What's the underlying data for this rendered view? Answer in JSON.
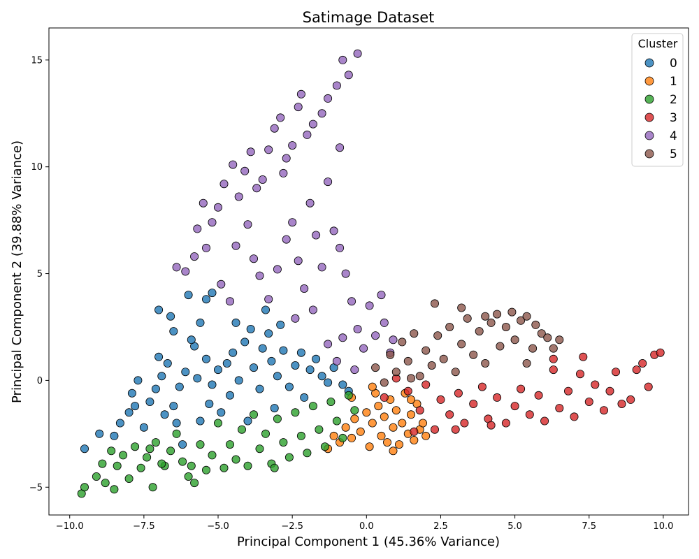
{
  "chart_data": {
    "type": "scatter",
    "title": "Satimage Dataset",
    "xlabel": "Principal Component 1 (45.36% Variance)",
    "ylabel": "Principal Component 2 (39.88% Variance)",
    "xlim": [
      -10.7,
      10.85
    ],
    "ylim": [
      -6.3,
      16.5
    ],
    "xticks": [
      -10.0,
      -7.5,
      -5.0,
      -2.5,
      0.0,
      2.5,
      5.0,
      7.5,
      10.0
    ],
    "xtick_labels": [
      "−10.0",
      "−7.5",
      "−5.0",
      "−2.5",
      "0.0",
      "2.5",
      "5.0",
      "7.5",
      "10.0"
    ],
    "yticks": [
      -5,
      0,
      5,
      10,
      15
    ],
    "ytick_labels": [
      "−5",
      "0",
      "5",
      "10",
      "15"
    ],
    "grid": false,
    "legend": {
      "title": "Cluster",
      "placement": "top-right"
    },
    "series": [
      {
        "name": "0",
        "color": "#1f77b4",
        "points": [
          [
            -9.5,
            -3.2
          ],
          [
            -9.0,
            -2.5
          ],
          [
            -8.5,
            -2.6
          ],
          [
            -8.3,
            -2.0
          ],
          [
            -8.0,
            -1.5
          ],
          [
            -7.8,
            -1.2
          ],
          [
            -7.9,
            -0.6
          ],
          [
            -7.5,
            -2.2
          ],
          [
            -7.3,
            -1.0
          ],
          [
            -7.1,
            -0.4
          ],
          [
            -6.9,
            0.2
          ],
          [
            -7.0,
            1.1
          ],
          [
            -7.0,
            3.3
          ],
          [
            -6.6,
            3.0
          ],
          [
            -6.5,
            2.3
          ],
          [
            -6.8,
            -1.6
          ],
          [
            -6.5,
            -1.2
          ],
          [
            -6.3,
            -0.3
          ],
          [
            -6.4,
            -2.0
          ],
          [
            -6.1,
            0.4
          ],
          [
            -5.8,
            1.6
          ],
          [
            -5.9,
            1.9
          ],
          [
            -6.0,
            4.0
          ],
          [
            -5.6,
            2.7
          ],
          [
            -5.4,
            3.8
          ],
          [
            -5.2,
            4.1
          ],
          [
            -5.4,
            1.0
          ],
          [
            -5.2,
            -0.2
          ],
          [
            -5.0,
            0.5
          ],
          [
            -5.3,
            -1.1
          ],
          [
            -4.9,
            -1.5
          ],
          [
            -4.7,
            0.8
          ],
          [
            -4.5,
            1.3
          ],
          [
            -4.6,
            -0.7
          ],
          [
            -4.3,
            0.0
          ],
          [
            -4.1,
            1.8
          ],
          [
            -3.9,
            2.4
          ],
          [
            -3.8,
            0.6
          ],
          [
            -3.6,
            -0.4
          ],
          [
            -3.5,
            1.5
          ],
          [
            -3.4,
            3.3
          ],
          [
            -3.3,
            2.2
          ],
          [
            -3.2,
            0.9
          ],
          [
            -3.0,
            0.2
          ],
          [
            -2.8,
            1.4
          ],
          [
            -2.6,
            -0.3
          ],
          [
            -2.4,
            0.7
          ],
          [
            -2.2,
            1.3
          ],
          [
            -2.1,
            -0.8
          ],
          [
            -1.9,
            0.5
          ],
          [
            -1.7,
            1.0
          ],
          [
            -1.5,
            0.2
          ],
          [
            -1.3,
            -0.1
          ],
          [
            -1.1,
            0.6
          ],
          [
            -0.8,
            -0.2
          ],
          [
            -0.6,
            -0.5
          ],
          [
            -6.2,
            -3.0
          ],
          [
            -4.0,
            -1.9
          ],
          [
            -3.1,
            -1.3
          ],
          [
            -5.6,
            -1.9
          ],
          [
            -4.4,
            2.7
          ],
          [
            -2.9,
            2.6
          ],
          [
            -7.7,
            0.0
          ],
          [
            -6.7,
            0.8
          ],
          [
            -5.7,
            0.1
          ]
        ]
      },
      {
        "name": "1",
        "color": "#ff7f0e",
        "points": [
          [
            -1.3,
            -3.2
          ],
          [
            -1.1,
            -2.6
          ],
          [
            -0.9,
            -2.9
          ],
          [
            -0.7,
            -2.2
          ],
          [
            -0.5,
            -2.7
          ],
          [
            -0.4,
            -1.8
          ],
          [
            -0.2,
            -2.4
          ],
          [
            0.0,
            -1.5
          ],
          [
            0.1,
            -3.1
          ],
          [
            0.2,
            -2.0
          ],
          [
            0.3,
            -0.6
          ],
          [
            0.4,
            -1.2
          ],
          [
            0.5,
            -2.6
          ],
          [
            0.6,
            -1.7
          ],
          [
            0.7,
            -2.9
          ],
          [
            0.8,
            -0.9
          ],
          [
            0.9,
            -2.2
          ],
          [
            1.0,
            -1.4
          ],
          [
            1.1,
            -3.0
          ],
          [
            1.2,
            -2.0
          ],
          [
            1.3,
            -0.6
          ],
          [
            1.4,
            -2.5
          ],
          [
            1.5,
            -1.6
          ],
          [
            1.6,
            -2.8
          ],
          [
            1.7,
            -1.1
          ],
          [
            1.8,
            -2.3
          ],
          [
            1.9,
            -2.0
          ],
          [
            2.0,
            -2.6
          ],
          [
            0.2,
            -0.3
          ],
          [
            -0.5,
            -0.8
          ],
          [
            0.9,
            -3.3
          ],
          [
            1.5,
            -0.9
          ]
        ]
      },
      {
        "name": "2",
        "color": "#2ca02c",
        "points": [
          [
            -9.6,
            -5.3
          ],
          [
            -9.5,
            -5.0
          ],
          [
            -9.1,
            -4.5
          ],
          [
            -8.9,
            -3.9
          ],
          [
            -8.8,
            -4.8
          ],
          [
            -8.6,
            -3.3
          ],
          [
            -8.5,
            -5.1
          ],
          [
            -8.4,
            -4.0
          ],
          [
            -8.2,
            -3.5
          ],
          [
            -8.0,
            -4.6
          ],
          [
            -7.8,
            -3.1
          ],
          [
            -7.6,
            -4.1
          ],
          [
            -7.4,
            -3.6
          ],
          [
            -7.2,
            -5.0
          ],
          [
            -7.1,
            -2.9
          ],
          [
            -6.8,
            -4.0
          ],
          [
            -6.6,
            -3.3
          ],
          [
            -6.4,
            -2.5
          ],
          [
            -6.2,
            -3.8
          ],
          [
            -6.0,
            -4.5
          ],
          [
            -5.8,
            -4.8
          ],
          [
            -5.6,
            -3.0
          ],
          [
            -5.4,
            -4.2
          ],
          [
            -5.2,
            -3.5
          ],
          [
            -5.0,
            -2.0
          ],
          [
            -4.8,
            -4.1
          ],
          [
            -4.6,
            -3.0
          ],
          [
            -4.4,
            -3.7
          ],
          [
            -4.2,
            -2.3
          ],
          [
            -4.0,
            -4.0
          ],
          [
            -3.8,
            -1.6
          ],
          [
            -3.6,
            -3.2
          ],
          [
            -3.4,
            -2.5
          ],
          [
            -3.2,
            -3.9
          ],
          [
            -3.0,
            -1.8
          ],
          [
            -2.8,
            -2.9
          ],
          [
            -2.6,
            -3.6
          ],
          [
            -2.4,
            -1.5
          ],
          [
            -2.2,
            -2.6
          ],
          [
            -2.0,
            -3.4
          ],
          [
            -1.8,
            -1.2
          ],
          [
            -1.6,
            -2.3
          ],
          [
            -1.4,
            -3.1
          ],
          [
            -1.2,
            -1.0
          ],
          [
            -1.0,
            -1.9
          ],
          [
            -0.8,
            -2.7
          ],
          [
            -0.6,
            -0.7
          ],
          [
            -0.4,
            -1.4
          ],
          [
            -3.1,
            -4.1
          ],
          [
            -5.9,
            -4.0
          ],
          [
            -7.3,
            -3.2
          ],
          [
            -6.9,
            -3.9
          ]
        ]
      },
      {
        "name": "3",
        "color": "#d62728",
        "points": [
          [
            0.6,
            -0.8
          ],
          [
            1.0,
            0.1
          ],
          [
            1.4,
            -0.5
          ],
          [
            1.8,
            -1.4
          ],
          [
            2.0,
            -0.2
          ],
          [
            2.3,
            -2.3
          ],
          [
            2.5,
            -0.9
          ],
          [
            2.8,
            -1.6
          ],
          [
            3.1,
            -0.6
          ],
          [
            3.3,
            -2.0
          ],
          [
            3.6,
            -1.1
          ],
          [
            3.9,
            -0.3
          ],
          [
            4.1,
            -1.8
          ],
          [
            4.4,
            -0.8
          ],
          [
            4.7,
            -2.0
          ],
          [
            5.0,
            -1.2
          ],
          [
            5.2,
            -0.4
          ],
          [
            5.5,
            -1.6
          ],
          [
            5.8,
            -0.7
          ],
          [
            6.0,
            -1.9
          ],
          [
            6.3,
            0.5
          ],
          [
            6.5,
            -1.3
          ],
          [
            6.8,
            -0.5
          ],
          [
            7.0,
            -1.7
          ],
          [
            7.2,
            0.3
          ],
          [
            7.5,
            -1.0
          ],
          [
            7.7,
            -0.2
          ],
          [
            8.0,
            -1.4
          ],
          [
            8.2,
            -0.5
          ],
          [
            8.4,
            0.4
          ],
          [
            8.6,
            -1.1
          ],
          [
            8.9,
            -0.9
          ],
          [
            9.1,
            0.5
          ],
          [
            9.3,
            0.8
          ],
          [
            9.5,
            -0.3
          ],
          [
            9.7,
            1.2
          ],
          [
            9.9,
            1.3
          ],
          [
            7.3,
            1.1
          ],
          [
            6.3,
            1.0
          ],
          [
            3.0,
            -2.3
          ],
          [
            4.2,
            -2.1
          ],
          [
            1.6,
            -2.4
          ]
        ]
      },
      {
        "name": "4",
        "color": "#9467bd",
        "points": [
          [
            -0.8,
            15.0
          ],
          [
            -0.3,
            15.3
          ],
          [
            -0.6,
            14.3
          ],
          [
            -1.0,
            13.8
          ],
          [
            -1.3,
            13.2
          ],
          [
            -1.5,
            12.5
          ],
          [
            -1.8,
            12.0
          ],
          [
            -2.0,
            11.5
          ],
          [
            -2.2,
            13.4
          ],
          [
            -2.3,
            12.8
          ],
          [
            -2.5,
            11.0
          ],
          [
            -2.7,
            10.4
          ],
          [
            -2.8,
            9.7
          ],
          [
            -2.9,
            12.3
          ],
          [
            -3.1,
            11.8
          ],
          [
            -3.3,
            10.8
          ],
          [
            -3.5,
            9.4
          ],
          [
            -3.7,
            9.0
          ],
          [
            -3.9,
            10.7
          ],
          [
            -4.1,
            9.8
          ],
          [
            -4.3,
            8.6
          ],
          [
            -4.5,
            10.1
          ],
          [
            -4.8,
            9.2
          ],
          [
            -5.0,
            8.1
          ],
          [
            -5.2,
            7.4
          ],
          [
            -5.5,
            8.3
          ],
          [
            -5.7,
            7.1
          ],
          [
            -5.4,
            6.2
          ],
          [
            -5.8,
            5.8
          ],
          [
            -6.1,
            5.1
          ],
          [
            -6.4,
            5.3
          ],
          [
            -4.9,
            4.5
          ],
          [
            -4.6,
            3.7
          ],
          [
            -4.4,
            6.3
          ],
          [
            -4.0,
            7.3
          ],
          [
            -3.8,
            5.7
          ],
          [
            -3.6,
            4.9
          ],
          [
            -3.3,
            3.8
          ],
          [
            -3.0,
            5.2
          ],
          [
            -2.7,
            6.6
          ],
          [
            -2.5,
            7.4
          ],
          [
            -2.3,
            5.6
          ],
          [
            -2.1,
            4.3
          ],
          [
            -1.9,
            8.3
          ],
          [
            -1.7,
            6.8
          ],
          [
            -1.5,
            5.3
          ],
          [
            -1.3,
            9.3
          ],
          [
            -1.1,
            7.0
          ],
          [
            -0.9,
            6.2
          ],
          [
            -0.7,
            5.0
          ],
          [
            -0.5,
            3.7
          ],
          [
            -0.3,
            2.4
          ],
          [
            -0.1,
            1.5
          ],
          [
            0.1,
            3.5
          ],
          [
            0.3,
            2.1
          ],
          [
            0.5,
            4.0
          ],
          [
            0.6,
            2.7
          ],
          [
            0.8,
            1.3
          ],
          [
            -1.3,
            1.7
          ],
          [
            -1.0,
            0.9
          ],
          [
            -0.4,
            0.5
          ],
          [
            -2.4,
            2.9
          ],
          [
            -1.8,
            3.3
          ],
          [
            -0.8,
            2.0
          ],
          [
            0.9,
            1.9
          ],
          [
            -0.9,
            10.9
          ]
        ]
      },
      {
        "name": "5",
        "color": "#8c564b",
        "points": [
          [
            0.3,
            0.6
          ],
          [
            0.6,
            -0.1
          ],
          [
            0.8,
            1.2
          ],
          [
            1.0,
            0.4
          ],
          [
            1.2,
            1.8
          ],
          [
            1.4,
            0.9
          ],
          [
            1.6,
            2.2
          ],
          [
            1.8,
            0.2
          ],
          [
            2.0,
            1.4
          ],
          [
            2.2,
            0.7
          ],
          [
            2.3,
            3.6
          ],
          [
            2.4,
            2.1
          ],
          [
            2.6,
            1.0
          ],
          [
            2.8,
            2.5
          ],
          [
            3.0,
            0.4
          ],
          [
            3.2,
            1.7
          ],
          [
            3.2,
            3.4
          ],
          [
            3.4,
            2.9
          ],
          [
            3.6,
            1.2
          ],
          [
            3.8,
            2.3
          ],
          [
            4.0,
            0.8
          ],
          [
            4.2,
            2.7
          ],
          [
            4.4,
            3.1
          ],
          [
            4.5,
            1.6
          ],
          [
            4.7,
            2.5
          ],
          [
            4.9,
            3.2
          ],
          [
            5.0,
            1.9
          ],
          [
            5.2,
            2.8
          ],
          [
            5.4,
            0.8
          ],
          [
            5.6,
            1.5
          ],
          [
            5.7,
            2.6
          ],
          [
            5.9,
            2.2
          ],
          [
            6.1,
            2.0
          ],
          [
            6.3,
            1.5
          ],
          [
            6.5,
            1.9
          ],
          [
            5.4,
            3.0
          ],
          [
            4.0,
            3.0
          ],
          [
            1.5,
            0.1
          ]
        ]
      }
    ]
  }
}
